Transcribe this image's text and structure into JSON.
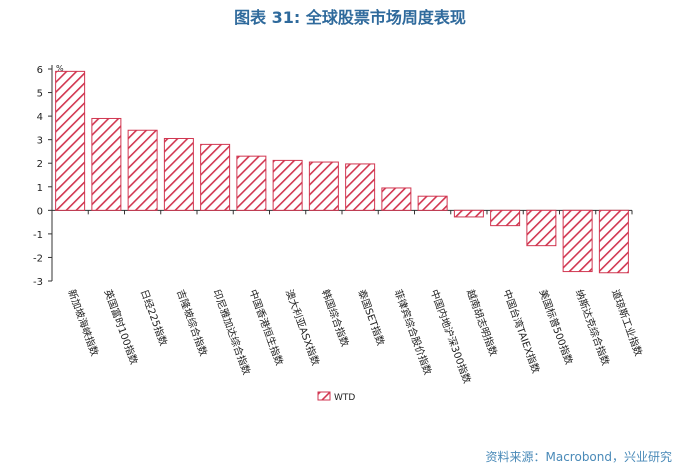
{
  "title": "图表 31: 全球股票市场周度表现",
  "source": "资料来源：Macrobond，兴业研究",
  "chart_data": {
    "type": "bar",
    "unit": "%",
    "categories": [
      "新加坡海峡指数",
      "英国富时100指数",
      "日经225指数",
      "吉隆坡综合指数",
      "印尼雅加达综合指数",
      "中国香港恒生指数",
      "澳大利亚ASX指数",
      "韩国综合指数",
      "泰国SET指数",
      "菲律宾综合股价指数",
      "中国内地沪深300指数",
      "越南胡志明指数",
      "中国台湾TAIEX指数",
      "美国标普500指数",
      "纳斯达克综合指数",
      "道琼斯工业指数"
    ],
    "series": [
      {
        "name": "WTD",
        "values": [
          5.9,
          3.9,
          3.4,
          3.05,
          2.8,
          2.3,
          2.12,
          2.05,
          1.97,
          0.95,
          0.6,
          -0.28,
          -0.65,
          -1.5,
          -2.6,
          -2.65
        ]
      }
    ],
    "ylim": [
      -3,
      6
    ],
    "yticks": [
      -3,
      -2,
      -1,
      0,
      1,
      2,
      3,
      4,
      5,
      6
    ],
    "legend": "bottom-center",
    "grid": false,
    "colors": {
      "bar_stroke": "#d13650",
      "bar_hatch": "#d13650",
      "bar_fill": "#ffffff"
    }
  }
}
